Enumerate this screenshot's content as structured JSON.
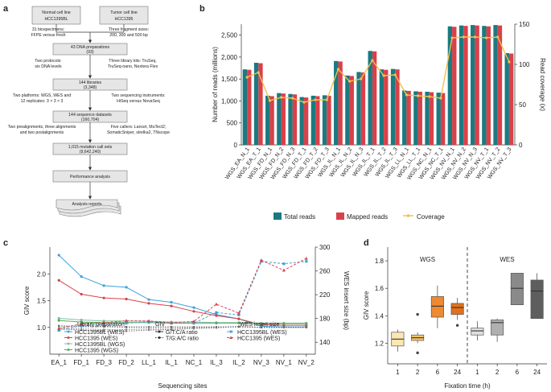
{
  "panels": {
    "a": "a",
    "b": "b",
    "c": "c",
    "d": "d"
  },
  "flowchart": {
    "normal_line": [
      "Normal cell line",
      "HCC1395BL"
    ],
    "tumor_line": [
      "Tumor cell line",
      "HCC1395"
    ],
    "side1_left": [
      "31 biospecimens:",
      "FFPE versus fresh"
    ],
    "side1_right": [
      "Three fragment sizes:",
      "200, 300 and 500 bp"
    ],
    "dna_prep": [
      "43 DNA preparations",
      "(93)"
    ],
    "side2_left": [
      "Two protocols:",
      "six DNA levels"
    ],
    "side2_right": [
      "Three library kits: TruSeq,",
      "TruSeq-nano, Nextera Flex"
    ],
    "libraries": [
      "144 libraries",
      "(3,348)"
    ],
    "side3_left": [
      "Two platforms: WGS, WES and",
      "12 replicates: 3 × 3 × 3"
    ],
    "side3_right": [
      "Two sequencing instruments:",
      "HiSeq versus NovaSeq"
    ],
    "seq_datasets": [
      "144 sequence datasets",
      "(160,704)"
    ],
    "side4_left": [
      "Two prealignments, three alignments",
      "and two postalignments"
    ],
    "side4_right": [
      "Five callers: Lancet, MuTect2;",
      "SomaticSniper, strelka2, TNscope"
    ],
    "call_sets": [
      "1,015 mutation call sets",
      "(9,642,240)"
    ],
    "analysis": "Performance analysis",
    "reports": "Analysis reports"
  },
  "legend_b": {
    "total": "Total reads",
    "mapped": "Mapped reads",
    "coverage": "Coverage"
  },
  "legend_c": {
    "lib_title": "Library preparation",
    "lib_items": [
      "HCC1395BL (WES)",
      "HCC1395 (WES)",
      "HCC1395BL (WGS)",
      "HCC1395 (WGS)"
    ],
    "giv_title": "GIV",
    "giv_items": [
      "G/T:C/A ratio",
      "T/G:A/C ratio"
    ],
    "wes_title": "WES insert size",
    "wes_items": [
      "HCC1395BL (WES)",
      "HCC1395 (WES)"
    ]
  },
  "colors": {
    "total": "#1b7a80",
    "mapped": "#d9414a",
    "coverage": "#f2c14e",
    "c_bl_wes": "#3ea3d8",
    "c_t_wes": "#d9414a",
    "c_bl_wgs": "#80c0a0",
    "c_t_wgs": "#5aa85a",
    "wgs1": "#fbe7b0",
    "wgs2": "#f5c46a",
    "wgs6": "#ee8a32",
    "wgs24": "#e2711d",
    "wes1": "#e0e0e0",
    "wes2": "#b0b0b0",
    "wes6": "#8a8a8a",
    "wes24": "#5e5e5e"
  },
  "chart_data": [
    {
      "type": "bar",
      "id": "b",
      "title": "",
      "ylabel": "Number of reads (millions)",
      "y2label": "Read coverage (x)",
      "ylim": [
        0,
        2750
      ],
      "yticks": [
        0,
        500,
        1000,
        1500,
        2000,
        2500
      ],
      "y2lim": [
        0,
        150
      ],
      "y2ticks": [
        0,
        50,
        100,
        150
      ],
      "categories": [
        "WGS_EA_N_1",
        "WGS_EA_T_1",
        "WGS_FD_N_1",
        "WGS_FD_N_2",
        "WGS_FD_N_3",
        "WGS_FD_T_1",
        "WGS_FD_T_2",
        "WGS_FD_T_3",
        "WGS_IL_N_1",
        "WGS_IL_N_2",
        "WGS_IL_N_3",
        "WGS_IL_T_1",
        "WGS_IL_T_2",
        "WGS_IL_T_3",
        "WGS_LL_N_1",
        "WGS_LL_T_1",
        "WGS_NC_N_1",
        "WGS_NC_T_1",
        "WGS_NV_N_1",
        "WGS_NV_N_2",
        "WGS_NV_N_3",
        "WGS_NV_T_1",
        "WGS_NV_T_2",
        "WGS_NV_T_3"
      ],
      "series": [
        {
          "name": "Total reads",
          "values": [
            1720,
            1870,
            1120,
            1180,
            1160,
            1090,
            1120,
            1130,
            1910,
            1580,
            1660,
            2140,
            1720,
            1730,
            1240,
            1220,
            1210,
            1190,
            2700,
            2720,
            2730,
            2710,
            2730,
            2090
          ]
        },
        {
          "name": "Mapped reads",
          "values": [
            1710,
            1860,
            1110,
            1170,
            1150,
            1080,
            1110,
            1120,
            1900,
            1570,
            1650,
            2130,
            1710,
            1720,
            1230,
            1210,
            1200,
            1180,
            2690,
            2710,
            2720,
            2700,
            2720,
            2080
          ]
        },
        {
          "name": "Coverage",
          "axis": "right",
          "values": [
            84,
            90,
            55,
            59,
            58,
            53,
            56,
            56,
            94,
            79,
            82,
            105,
            86,
            87,
            62,
            61,
            60,
            58,
            133,
            134,
            134,
            133,
            134,
            103
          ]
        }
      ]
    },
    {
      "type": "line",
      "id": "c",
      "xlabel": "Sequencing sites",
      "ylabel": "GIV score",
      "y2label": "WES insert size (bp)",
      "ylim": [
        0.5,
        2.5
      ],
      "yticks": [
        1.0,
        1.5,
        2.0
      ],
      "y2lim": [
        120,
        300
      ],
      "y2ticks": [
        140,
        180,
        220,
        260,
        300
      ],
      "categories": [
        "EA_1",
        "FD_1",
        "FD_3",
        "FD_2",
        "LL_1",
        "IL_1",
        "NC_1",
        "IL_3",
        "IL_2",
        "NV_3",
        "NV_1",
        "NV_2"
      ],
      "series": [
        {
          "name": "HCC1395BL (WES) G/T:C/A",
          "values": [
            2.35,
            1.95,
            1.78,
            1.75,
            1.52,
            1.47,
            1.37,
            1.24,
            1.16,
            1.02,
            1.01,
            1.01
          ]
        },
        {
          "name": "HCC1395 (WES) G/T:C/A",
          "values": [
            1.88,
            1.62,
            1.55,
            1.53,
            1.45,
            1.4,
            1.3,
            1.22,
            1.16,
            1.05,
            1.04,
            1.04
          ]
        },
        {
          "name": "HCC1395BL (WGS) G/T:C/A",
          "values": [
            1.17,
            1.14,
            1.12,
            1.12,
            1.11,
            1.1,
            1.1,
            1.09,
            1.09,
            1.08,
            1.08,
            1.08
          ]
        },
        {
          "name": "HCC1395 (WGS) G/T:C/A",
          "values": [
            1.13,
            1.1,
            1.09,
            1.09,
            1.09,
            1.08,
            1.08,
            1.08,
            1.08,
            1.07,
            1.07,
            1.07
          ]
        },
        {
          "name": "HCC1395BL (WES) T/G:A/C",
          "values": [
            0.97,
            0.95,
            0.93,
            0.93,
            0.95,
            0.96,
            0.98,
            0.99,
            1.02,
            1.0,
            1.0,
            1.0
          ]
        },
        {
          "name": "HCC1395 (WES) T/G:A/C",
          "values": [
            0.99,
            0.97,
            0.96,
            0.96,
            0.97,
            0.97,
            0.99,
            1.0,
            1.02,
            1.0,
            1.0,
            1.0
          ]
        },
        {
          "name": "HCC1395BL (WGS) T/G:A/C",
          "values": [
            1.02,
            1.01,
            1.01,
            1.0,
            1.0,
            1.0,
            1.0,
            1.01,
            1.01,
            1.0,
            1.0,
            1.0
          ]
        },
        {
          "name": "HCC1395 (WGS) T/G:A/C",
          "values": [
            1.03,
            1.02,
            1.02,
            1.01,
            1.01,
            1.01,
            1.01,
            1.01,
            1.01,
            1.0,
            1.0,
            1.0
          ]
        },
        {
          "name": "WES insert size HCC1395BL (WES)",
          "axis": "right",
          "values": [
            160,
            168,
            170,
            172,
            174,
            172,
            172,
            190,
            186,
            276,
            272,
            276
          ]
        },
        {
          "name": "WES insert size HCC1395 (WES)",
          "axis": "right",
          "values": [
            163,
            171,
            173,
            176,
            176,
            173,
            175,
            204,
            189,
            278,
            261,
            281
          ]
        }
      ]
    },
    {
      "type": "box",
      "id": "d",
      "xlabel": "Fixation time (h)",
      "ylabel": "GIV score",
      "ylim": [
        1.05,
        1.9
      ],
      "yticks": [
        1.2,
        1.4,
        1.6,
        1.8
      ],
      "groups": [
        "WGS",
        "WES"
      ],
      "categories": [
        "1",
        "2",
        "6",
        "24",
        "1",
        "2",
        "6",
        "24"
      ],
      "boxes": [
        {
          "group": "WGS",
          "time": "1",
          "min": 1.14,
          "q1": 1.18,
          "median": 1.23,
          "q3": 1.28,
          "max": 1.3,
          "outliers": []
        },
        {
          "group": "WGS",
          "time": "2",
          "min": 1.2,
          "q1": 1.22,
          "median": 1.24,
          "q3": 1.26,
          "max": 1.28,
          "outliers": [
            1.41,
            1.13
          ]
        },
        {
          "group": "WGS",
          "time": "6",
          "min": 1.31,
          "q1": 1.39,
          "median": 1.47,
          "q3": 1.54,
          "max": 1.62,
          "outliers": []
        },
        {
          "group": "WGS",
          "time": "24",
          "min": 1.37,
          "q1": 1.41,
          "median": 1.46,
          "q3": 1.49,
          "max": 1.53,
          "outliers": [
            1.33
          ]
        },
        {
          "group": "WES",
          "time": "1",
          "min": 1.22,
          "q1": 1.26,
          "median": 1.29,
          "q3": 1.31,
          "max": 1.36,
          "outliers": []
        },
        {
          "group": "WES",
          "time": "2",
          "min": 1.21,
          "q1": 1.26,
          "median": 1.35,
          "q3": 1.37,
          "max": 1.38,
          "outliers": []
        },
        {
          "group": "WES",
          "time": "6",
          "min": 1.48,
          "q1": 1.48,
          "median": 1.6,
          "q3": 1.71,
          "max": 1.71,
          "outliers": []
        },
        {
          "group": "WES",
          "time": "24",
          "min": 1.38,
          "q1": 1.38,
          "median": 1.58,
          "q3": 1.66,
          "max": 1.71,
          "outliers": []
        }
      ]
    }
  ]
}
